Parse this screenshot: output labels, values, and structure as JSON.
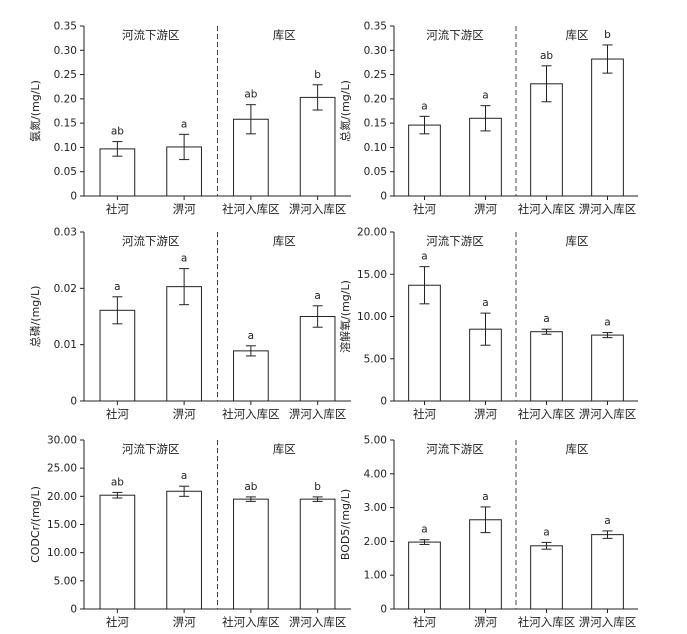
{
  "chart_data": [
    {
      "type": "bar",
      "region_labels": [
        "河流下游区",
        "库区"
      ],
      "categories": [
        "社河",
        "淠河",
        "社河入库区",
        "淠河入库区"
      ],
      "ylabel": "氨氮/(mg/L)",
      "ylim": [
        0,
        0.35
      ],
      "yticks": [
        "0",
        "0.05",
        "0.10",
        "0.15",
        "0.20",
        "0.25",
        "0.30",
        "0.35"
      ],
      "values": [
        0.097,
        0.101,
        0.158,
        0.203
      ],
      "errors": [
        0.015,
        0.026,
        0.03,
        0.026
      ],
      "sig": [
        "ab",
        "a",
        "ab",
        "b"
      ]
    },
    {
      "type": "bar",
      "region_labels": [
        "河流下游区",
        "库区"
      ],
      "categories": [
        "社河",
        "淠河",
        "社河入库区",
        "淠河入库区"
      ],
      "ylabel": "总氮/(mg/L)",
      "ylim": [
        0,
        0.35
      ],
      "yticks": [
        "0",
        "0.05",
        "0.10",
        "0.15",
        "0.20",
        "0.25",
        "0.30",
        "0.35"
      ],
      "values": [
        0.146,
        0.16,
        0.231,
        0.282
      ],
      "errors": [
        0.018,
        0.026,
        0.037,
        0.029
      ],
      "sig": [
        "a",
        "a",
        "ab",
        "b"
      ]
    },
    {
      "type": "bar",
      "region_labels": [
        "河流下游区",
        "库区"
      ],
      "categories": [
        "社河",
        "淠河",
        "社河入库区",
        "淠河入库区"
      ],
      "ylabel": "总磷/(mg/L)",
      "ylim": [
        0,
        0.03
      ],
      "yticks": [
        "0",
        "0.01",
        "0.02",
        "0.03"
      ],
      "values": [
        0.0161,
        0.0203,
        0.0089,
        0.015
      ],
      "errors": [
        0.0024,
        0.0032,
        0.0009,
        0.0019
      ],
      "sig": [
        "a",
        "a",
        "a",
        "a"
      ]
    },
    {
      "type": "bar",
      "region_labels": [
        "河流下游区",
        "库区"
      ],
      "categories": [
        "社河",
        "淠河",
        "社河入库区",
        "淠河入库区"
      ],
      "ylabel": "溶解氧/(mg/L)",
      "ylim": [
        0,
        20
      ],
      "yticks": [
        "0",
        "5.00",
        "10.00",
        "15.00",
        "20.00"
      ],
      "values": [
        13.7,
        8.5,
        8.2,
        7.8
      ],
      "errors": [
        2.2,
        1.9,
        0.3,
        0.3
      ],
      "sig": [
        "a",
        "a",
        "a",
        "a"
      ]
    },
    {
      "type": "bar",
      "region_labels": [
        "河流下游区",
        "库区"
      ],
      "categories": [
        "社河",
        "淠河",
        "社河入库区",
        "淠河入库区"
      ],
      "ylabel": "CODCr/(mg/L)",
      "ylim": [
        0,
        30
      ],
      "yticks": [
        "0",
        "5.00",
        "10.00",
        "15.00",
        "20.00",
        "25.00",
        "30.00"
      ],
      "values": [
        20.2,
        20.9,
        19.5,
        19.5
      ],
      "errors": [
        0.5,
        0.9,
        0.4,
        0.4
      ],
      "sig": [
        "ab",
        "a",
        "ab",
        "b"
      ]
    },
    {
      "type": "bar",
      "region_labels": [
        "河流下游区",
        "库区"
      ],
      "categories": [
        "社河",
        "淠河",
        "社河入库区",
        "淠河入库区"
      ],
      "ylabel": "BOD5/(mg/L)",
      "ylim": [
        0,
        5
      ],
      "yticks": [
        "0",
        "1.00",
        "2.00",
        "3.00",
        "4.00",
        "5.00"
      ],
      "values": [
        1.98,
        2.64,
        1.87,
        2.2
      ],
      "errors": [
        0.07,
        0.38,
        0.1,
        0.11
      ],
      "sig": [
        "a",
        "a",
        "a",
        "a"
      ]
    }
  ]
}
